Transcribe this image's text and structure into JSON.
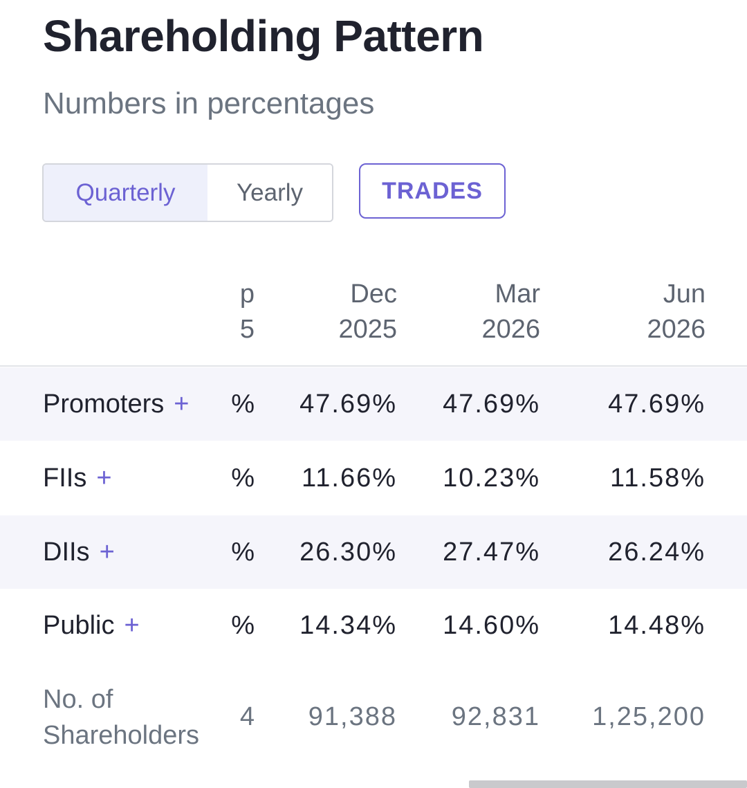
{
  "header": {
    "title": "Shareholding Pattern",
    "subtitle": "Numbers in percentages"
  },
  "toggle": {
    "options": [
      "Quarterly",
      "Yearly"
    ],
    "selected": "Quarterly"
  },
  "trades_button": {
    "label": "TRADES"
  },
  "table": {
    "partial_column": {
      "month_fragment": "p",
      "year_fragment": "5"
    },
    "columns": [
      {
        "month": "Dec",
        "year": "2025"
      },
      {
        "month": "Mar",
        "year": "2026"
      },
      {
        "month": "Jun",
        "year": "2026"
      }
    ],
    "rows": [
      {
        "label": "Promoters",
        "plus": "+",
        "partial": "%",
        "values": [
          "47.69%",
          "47.69%",
          "47.69%"
        ]
      },
      {
        "label": "FIIs",
        "plus": "+",
        "partial": "%",
        "values": [
          "11.66%",
          "10.23%",
          "11.58%"
        ]
      },
      {
        "label": "DIIs",
        "plus": "+",
        "partial": "%",
        "values": [
          "26.30%",
          "27.47%",
          "26.24%"
        ]
      },
      {
        "label": "Public",
        "plus": "+",
        "partial": "%",
        "values": [
          "14.34%",
          "14.60%",
          "14.48%"
        ]
      }
    ],
    "shareholders": {
      "label_line1": "No. of",
      "label_line2": "Shareholders",
      "partial": "4",
      "values": [
        "91,388",
        "92,831",
        "1,25,200"
      ]
    }
  },
  "colors": {
    "accent": "#6c62d3",
    "text_primary": "#20222e",
    "text_secondary": "#6b7480",
    "row_shade": "#f5f5fb"
  }
}
